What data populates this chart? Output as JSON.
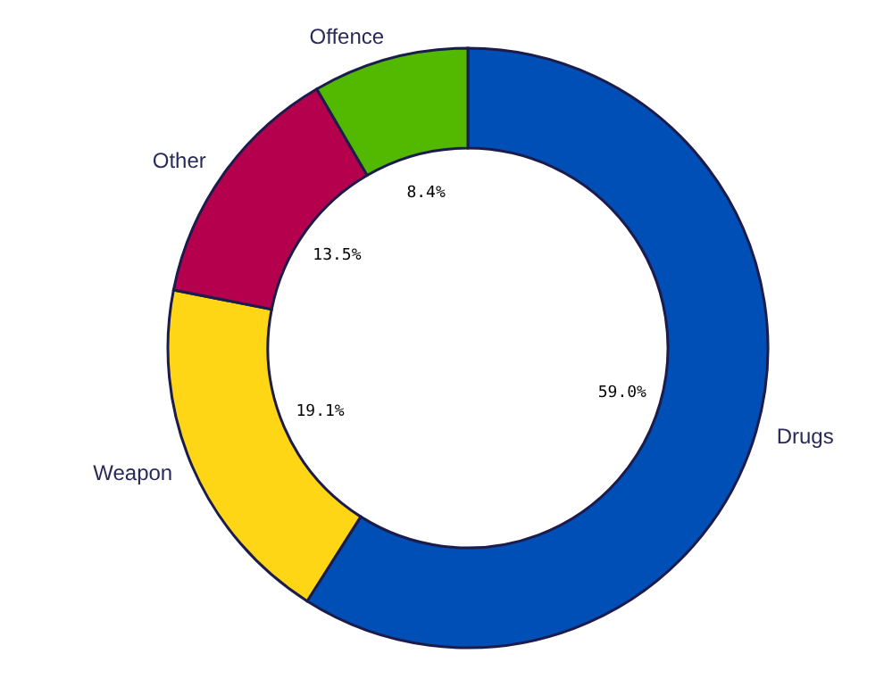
{
  "chart_data": {
    "type": "donut",
    "categories": [
      "Drugs",
      "Weapon",
      "Other",
      "Offence"
    ],
    "values": [
      59.0,
      19.1,
      13.5,
      8.4
    ],
    "colors": [
      "#004fb6",
      "#ffd616",
      "#b5004d",
      "#52b800"
    ],
    "value_labels": [
      "59.0%",
      "19.1%",
      "13.5%",
      "8.4%"
    ]
  }
}
